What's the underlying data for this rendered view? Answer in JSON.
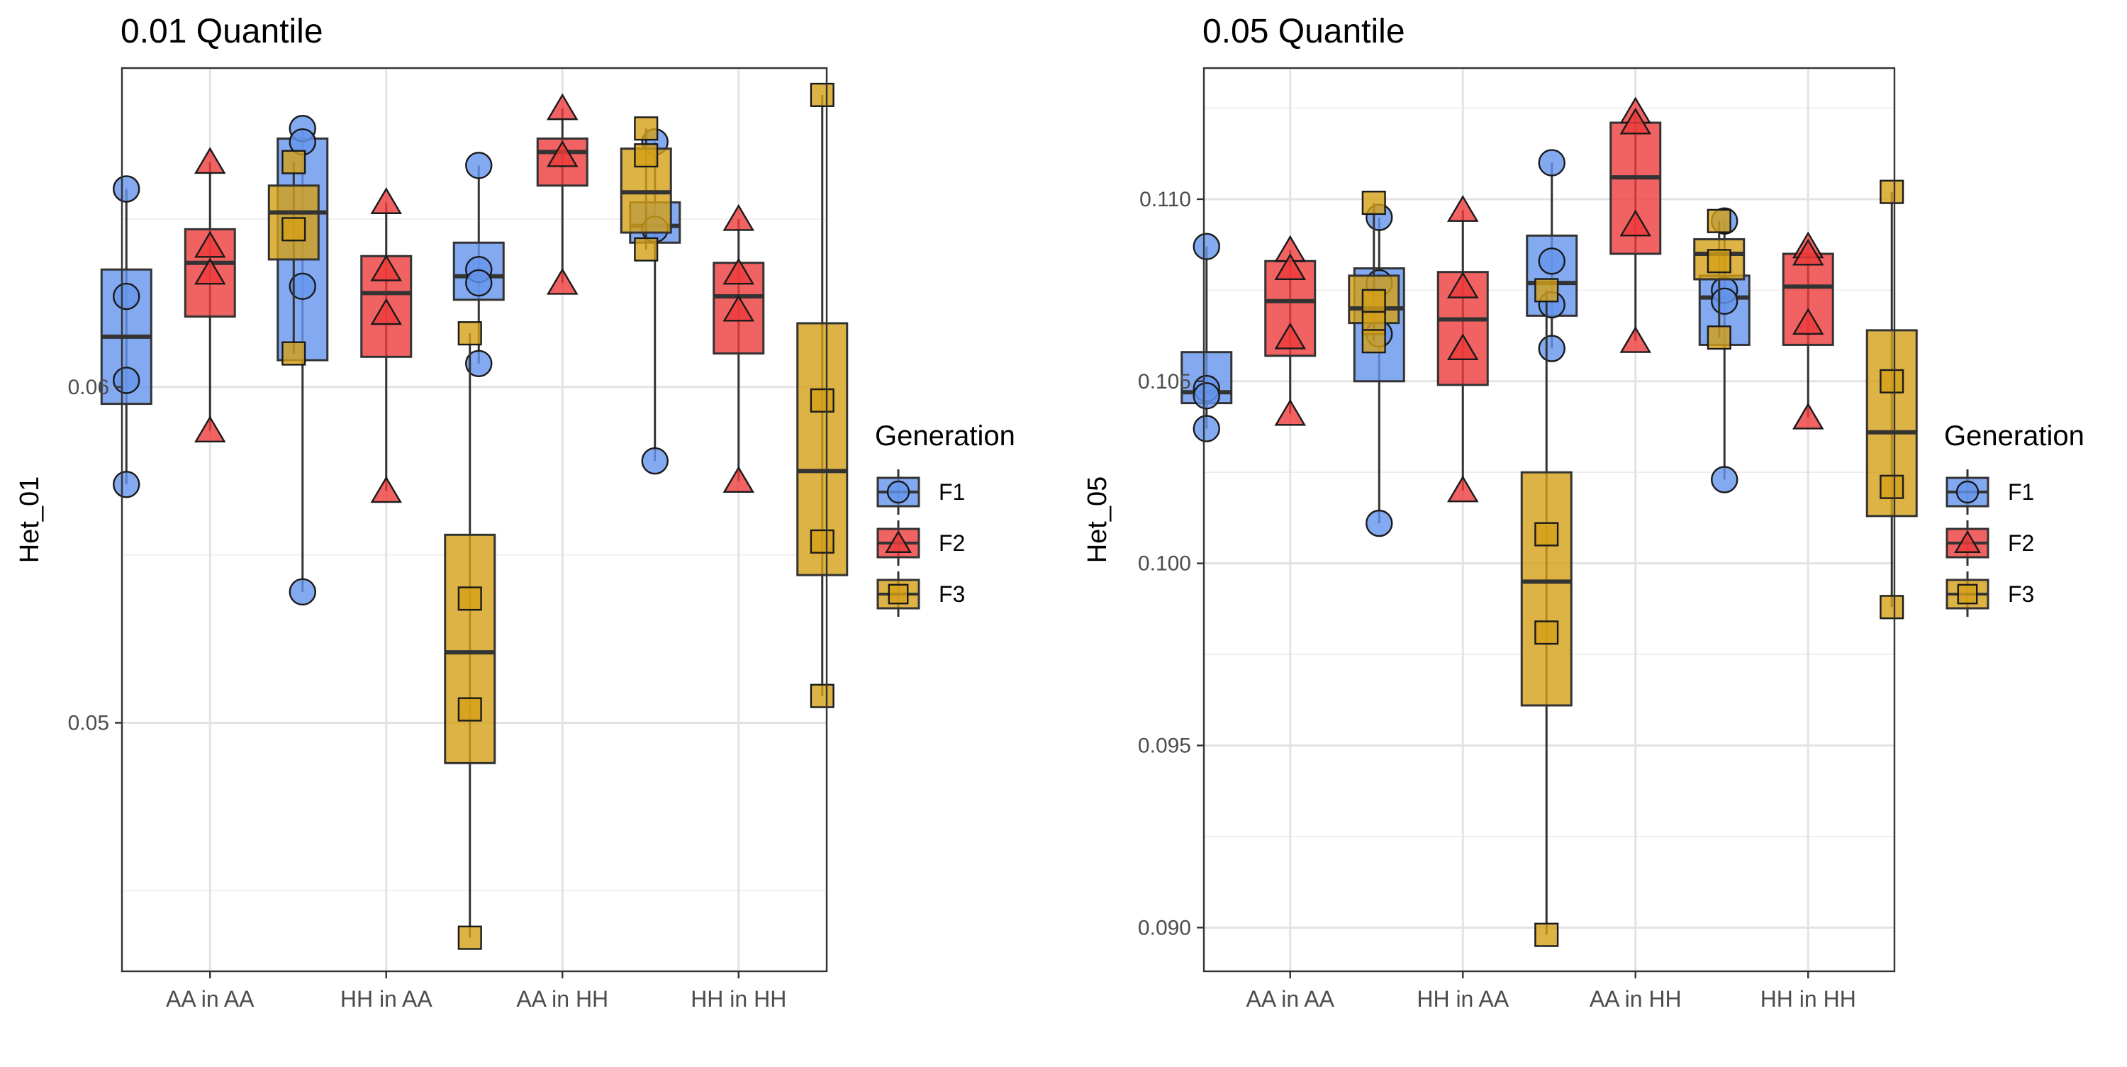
{
  "colors": {
    "F1": "#6495ED",
    "F2": "#EE3B3B",
    "F3": "#D4A017"
  },
  "chart_data": [
    {
      "type": "boxplot",
      "title": "0.01 Quantile",
      "xlabel": "",
      "ylabel": "Het_01",
      "categories": [
        "AA in AA",
        "HH in AA",
        "AA in HH",
        "HH in HH"
      ],
      "ylim": [
        0.0426,
        0.0695
      ],
      "yticks": [
        0.05,
        0.06
      ],
      "ytick_labels": [
        "0.05",
        "0.06"
      ],
      "grid": true,
      "legend": {
        "title": "Generation",
        "position": "right",
        "entries": [
          "F1",
          "F2",
          "F3"
        ]
      },
      "series": [
        {
          "name": "F1",
          "shape": "circle",
          "boxes": [
            {
              "min": 0.0571,
              "q1": 0.0595,
              "median": 0.0615,
              "q3": 0.0635,
              "max": 0.0659,
              "points": [
                0.0659,
                0.0627,
                0.0602,
                0.0571
              ]
            },
            {
              "min": 0.0539,
              "q1": 0.0608,
              "median": 0.0652,
              "q3": 0.0674,
              "max": 0.0677,
              "points": [
                0.0677,
                0.0673,
                0.063,
                0.0539
              ]
            },
            {
              "min": 0.0607,
              "q1": 0.0626,
              "median": 0.0633,
              "q3": 0.0643,
              "max": 0.0666,
              "points": [
                0.0666,
                0.0635,
                0.0631,
                0.0607
              ]
            },
            {
              "min": 0.0578,
              "q1": 0.0643,
              "median": 0.0648,
              "q3": 0.0655,
              "max": 0.0673,
              "points": [
                0.0673,
                0.0647,
                0.0578
              ]
            }
          ]
        },
        {
          "name": "F2",
          "shape": "triangle",
          "boxes": [
            {
              "min": 0.0587,
              "q1": 0.0621,
              "median": 0.0637,
              "q3": 0.0647,
              "max": 0.0667,
              "points": [
                0.0667,
                0.0642,
                0.0634,
                0.0587
              ]
            },
            {
              "min": 0.0569,
              "q1": 0.0609,
              "median": 0.0628,
              "q3": 0.0639,
              "max": 0.0655,
              "points": [
                0.0655,
                0.0635,
                0.0622,
                0.0569
              ]
            },
            {
              "min": 0.0631,
              "q1": 0.066,
              "median": 0.067,
              "q3": 0.0674,
              "max": 0.0683,
              "points": [
                0.0683,
                0.0669,
                0.0631
              ]
            },
            {
              "min": 0.0572,
              "q1": 0.061,
              "median": 0.0627,
              "q3": 0.0637,
              "max": 0.065,
              "points": [
                0.065,
                0.0634,
                0.0623,
                0.0572
              ]
            }
          ]
        },
        {
          "name": "F3",
          "shape": "square",
          "boxes": [
            {
              "min": 0.061,
              "q1": 0.0638,
              "median": 0.0652,
              "q3": 0.066,
              "max": 0.0667,
              "points": [
                0.0667,
                0.0647,
                0.061
              ]
            },
            {
              "min": 0.0436,
              "q1": 0.0488,
              "median": 0.0521,
              "q3": 0.0556,
              "max": 0.0616,
              "points": [
                0.0616,
                0.0537,
                0.0504,
                0.0436
              ]
            },
            {
              "min": 0.0641,
              "q1": 0.0646,
              "median": 0.0658,
              "q3": 0.0671,
              "max": 0.0677,
              "points": [
                0.0677,
                0.0669,
                0.0641
              ]
            },
            {
              "min": 0.0508,
              "q1": 0.0544,
              "median": 0.0575,
              "q3": 0.0619,
              "max": 0.0687,
              "points": [
                0.0687,
                0.0596,
                0.0554,
                0.0508
              ]
            }
          ]
        }
      ]
    },
    {
      "type": "boxplot",
      "title": "0.05 Quantile",
      "xlabel": "",
      "ylabel": "Het_05",
      "categories": [
        "AA in AA",
        "HH in AA",
        "AA in HH",
        "HH in HH"
      ],
      "ylim": [
        0.0888,
        0.1136
      ],
      "yticks": [
        0.09,
        0.095,
        0.1,
        0.105,
        0.11
      ],
      "ytick_labels": [
        "0.090",
        "0.095",
        "0.100",
        "0.105",
        "0.110"
      ],
      "grid": true,
      "legend": {
        "title": "Generation",
        "position": "right",
        "entries": [
          "F1",
          "F2",
          "F3"
        ]
      },
      "series": [
        {
          "name": "F1",
          "shape": "circle",
          "boxes": [
            {
              "min": 0.1037,
              "q1": 0.1044,
              "median": 0.1047,
              "q3": 0.1058,
              "max": 0.1087,
              "points": [
                0.1087,
                0.1048,
                0.1046,
                0.1037
              ]
            },
            {
              "min": 0.1011,
              "q1": 0.105,
              "median": 0.107,
              "q3": 0.1081,
              "max": 0.1095,
              "points": [
                0.1095,
                0.1077,
                0.1063,
                0.1011
              ]
            },
            {
              "min": 0.1059,
              "q1": 0.1068,
              "median": 0.1077,
              "q3": 0.109,
              "max": 0.111,
              "points": [
                0.111,
                0.1083,
                0.1071,
                0.1059
              ]
            },
            {
              "min": 0.1023,
              "q1": 0.106,
              "median": 0.1073,
              "q3": 0.1079,
              "max": 0.1094,
              "points": [
                0.1094,
                0.1075,
                0.1072,
                0.1023
              ]
            }
          ]
        },
        {
          "name": "F2",
          "shape": "triangle",
          "boxes": [
            {
              "min": 0.1041,
              "q1": 0.1057,
              "median": 0.1072,
              "q3": 0.1083,
              "max": 0.1086,
              "points": [
                0.1086,
                0.1081,
                0.1062,
                0.1041
              ]
            },
            {
              "min": 0.102,
              "q1": 0.1049,
              "median": 0.1067,
              "q3": 0.108,
              "max": 0.1097,
              "points": [
                0.1097,
                0.1076,
                0.1059,
                0.102
              ]
            },
            {
              "min": 0.1061,
              "q1": 0.1085,
              "median": 0.1106,
              "q3": 0.1121,
              "max": 0.1124,
              "points": [
                0.1124,
                0.1121,
                0.1093,
                0.1061
              ]
            },
            {
              "min": 0.104,
              "q1": 0.106,
              "median": 0.1076,
              "q3": 0.1085,
              "max": 0.1087,
              "points": [
                0.1087,
                0.1085,
                0.1066,
                0.104
              ]
            }
          ]
        },
        {
          "name": "F3",
          "shape": "square",
          "boxes": [
            {
              "min": 0.1061,
              "q1": 0.1066,
              "median": 0.107,
              "q3": 0.1079,
              "max": 0.1099,
              "points": [
                0.1099,
                0.1072,
                0.1066,
                0.1061
              ]
            },
            {
              "min": 0.0898,
              "q1": 0.0961,
              "median": 0.0995,
              "q3": 0.1025,
              "max": 0.1075,
              "points": [
                0.1075,
                0.1008,
                0.0981,
                0.0898
              ]
            },
            {
              "min": 0.1062,
              "q1": 0.1078,
              "median": 0.1085,
              "q3": 0.1089,
              "max": 0.1094,
              "points": [
                0.1094,
                0.1083,
                0.1062
              ]
            },
            {
              "min": 0.0988,
              "q1": 0.1013,
              "median": 0.1036,
              "q3": 0.1064,
              "max": 0.1102,
              "points": [
                0.1102,
                0.105,
                0.1021,
                0.0988
              ]
            }
          ]
        }
      ]
    }
  ]
}
